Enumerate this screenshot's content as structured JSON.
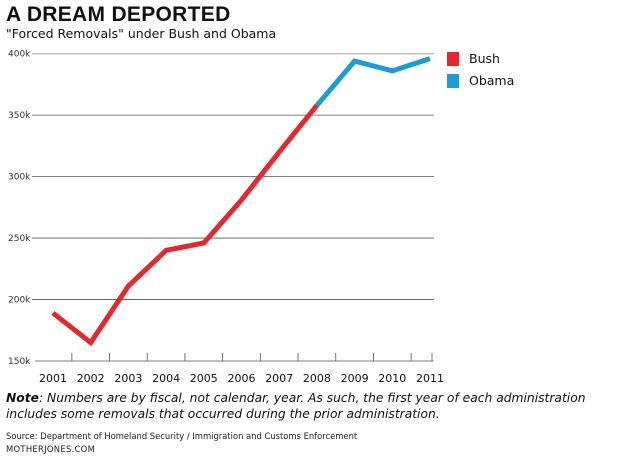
{
  "title": "A DREAM DEPORTED",
  "subtitle": "\"Forced Removals\" under Bush and Obama",
  "note_label": "Note",
  "note_text": ": Numbers are by fiscal, not calendar, year. As such, the first year of each administration includes some removals that occurred during the prior administration.",
  "source": "Source: Department of Homeland Security / Immigration and Customs Enforcement",
  "credit": "MOTHERJONES.COM",
  "chart_data": {
    "type": "line",
    "title": "A DREAM DEPORTED",
    "subtitle": "\"Forced Removals\" under Bush and Obama",
    "x": [
      "2001",
      "2002",
      "2003",
      "2004",
      "2005",
      "2006",
      "2007",
      "2008",
      "2009",
      "2010",
      "2011"
    ],
    "ylim": [
      150000,
      400000
    ],
    "yticks": [
      150000,
      200000,
      250000,
      300000,
      350000,
      400000
    ],
    "ytick_labels": [
      "150k",
      "200k",
      "250k",
      "300k",
      "350k",
      "400k"
    ],
    "grid": true,
    "legend_position": "right",
    "series": [
      {
        "name": "Bush",
        "color": "#e3292e",
        "x": [
          "2001",
          "2002",
          "2003",
          "2004",
          "2005",
          "2006",
          "2007",
          "2008"
        ],
        "values": [
          189000,
          165000,
          211000,
          240000,
          246000,
          281000,
          320000,
          358000
        ]
      },
      {
        "name": "Obama",
        "color": "#1d9bd6",
        "x": [
          "2008",
          "2009",
          "2010",
          "2011"
        ],
        "values": [
          358000,
          394000,
          386000,
          396000
        ]
      }
    ]
  }
}
